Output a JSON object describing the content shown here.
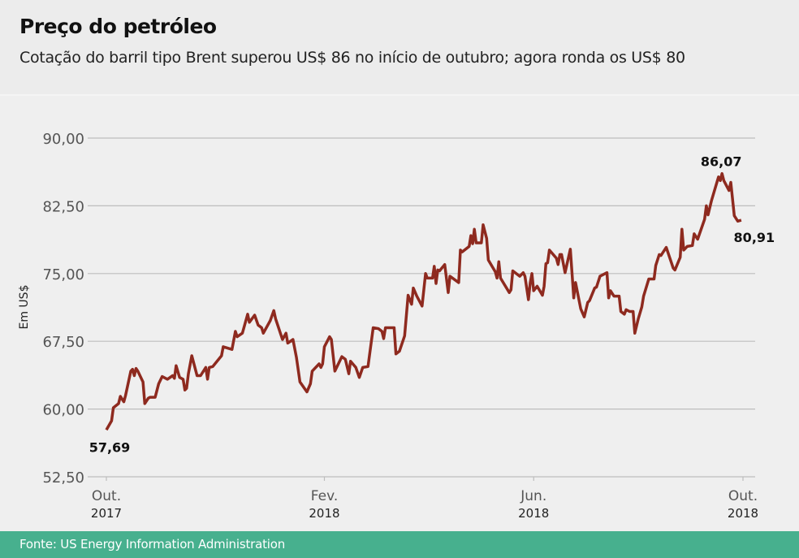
{
  "header": {
    "title": "Preço do petróleo",
    "subtitle": "Cotação do barril tipo Brent superou US$ 86 no início de outubro; agora ronda os US$ 80"
  },
  "footer": {
    "source": "Fonte: US Energy Information Administration"
  },
  "colors": {
    "line": "#8e2a1f",
    "grid": "#bdbdbd",
    "footer": "#47b08e"
  },
  "chart_data": {
    "type": "line",
    "title": "Preço do petróleo",
    "subtitle": "Cotação do barril tipo Brent superou US$ 86 no início de outubro; agora ronda os US$ 80",
    "ylabel": "Em US$",
    "ylim": [
      52.5,
      90
    ],
    "xlim": [
      "2017-10-01",
      "2018-10-01"
    ],
    "grid": true,
    "yticks": [
      {
        "value": 90,
        "label": "90,00"
      },
      {
        "value": 82.5,
        "label": "82,50"
      },
      {
        "value": 75,
        "label": "75,00"
      },
      {
        "value": 67.5,
        "label": "67,50"
      },
      {
        "value": 60,
        "label": "60,00"
      },
      {
        "value": 52.5,
        "label": "52,50"
      }
    ],
    "xticks": [
      {
        "date": "2017-10-01",
        "month": "Out.",
        "year": "2017"
      },
      {
        "date": "2018-02-03",
        "month": "Fev.",
        "year": "2018"
      },
      {
        "date": "2018-06-03",
        "month": "Jun.",
        "year": "2018"
      },
      {
        "date": "2018-10-01",
        "month": "Out.",
        "year": "2018"
      }
    ],
    "annotations": [
      {
        "date": "2017-10-01",
        "value": 57.69,
        "label": "57,69",
        "position": "below"
      },
      {
        "date": "2018-09-19",
        "value": 86.07,
        "label": "86,07",
        "position": "above"
      },
      {
        "date": "2018-09-30",
        "value": 80.91,
        "label": "80,91",
        "position": "below-right"
      }
    ],
    "series": [
      {
        "points": [
          [
            "2017-10-01",
            57.69
          ],
          [
            "2017-10-04",
            58.7
          ],
          [
            "2017-10-05",
            60.14
          ],
          [
            "2017-10-08",
            60.6
          ],
          [
            "2017-10-09",
            61.4
          ],
          [
            "2017-10-11",
            60.8
          ],
          [
            "2017-10-12",
            61.5
          ],
          [
            "2017-10-15",
            64.2
          ],
          [
            "2017-10-16",
            64.4
          ],
          [
            "2017-10-17",
            63.7
          ],
          [
            "2017-10-18",
            64.5
          ],
          [
            "2017-10-19",
            64.2
          ],
          [
            "2017-10-22",
            63.0
          ],
          [
            "2017-10-23",
            60.6
          ],
          [
            "2017-10-25",
            61.2
          ],
          [
            "2017-10-26",
            61.3
          ],
          [
            "2017-10-29",
            61.3
          ],
          [
            "2017-10-31",
            62.8
          ],
          [
            "2017-11-02",
            63.6
          ],
          [
            "2017-11-05",
            63.3
          ],
          [
            "2017-11-08",
            63.7
          ],
          [
            "2017-11-09",
            63.4
          ],
          [
            "2017-11-10",
            64.8
          ],
          [
            "2017-11-12",
            63.5
          ],
          [
            "2017-11-14",
            63.3
          ],
          [
            "2017-11-15",
            62.1
          ],
          [
            "2017-11-16",
            62.3
          ],
          [
            "2017-11-17",
            63.9
          ],
          [
            "2017-11-19",
            65.9
          ],
          [
            "2017-11-22",
            63.7
          ],
          [
            "2017-11-24",
            63.7
          ],
          [
            "2017-11-27",
            64.6
          ],
          [
            "2017-11-28",
            63.3
          ],
          [
            "2017-11-29",
            64.6
          ],
          [
            "2017-12-01",
            64.7
          ],
          [
            "2017-12-06",
            65.9
          ],
          [
            "2017-12-07",
            66.9
          ],
          [
            "2017-12-12",
            66.6
          ],
          [
            "2017-12-14",
            68.6
          ],
          [
            "2017-12-15",
            68.0
          ],
          [
            "2017-12-18",
            68.4
          ],
          [
            "2017-12-21",
            70.5
          ],
          [
            "2017-12-22",
            69.6
          ],
          [
            "2017-12-25",
            70.4
          ],
          [
            "2017-12-27",
            69.3
          ],
          [
            "2017-12-29",
            69.0
          ],
          [
            "2017-12-30",
            68.4
          ],
          [
            "2018-01-03",
            69.8
          ],
          [
            "2018-01-05",
            70.9
          ],
          [
            "2018-01-06",
            70.0
          ],
          [
            "2018-01-10",
            67.7
          ],
          [
            "2018-01-12",
            68.4
          ],
          [
            "2018-01-13",
            67.3
          ],
          [
            "2018-01-16",
            67.7
          ],
          [
            "2018-01-18",
            65.7
          ],
          [
            "2018-01-20",
            63.0
          ],
          [
            "2018-01-24",
            61.9
          ],
          [
            "2018-01-26",
            62.8
          ],
          [
            "2018-01-27",
            64.2
          ],
          [
            "2018-01-31",
            65.0
          ],
          [
            "2018-02-01",
            64.6
          ],
          [
            "2018-02-02",
            65.0
          ],
          [
            "2018-02-03",
            66.9
          ],
          [
            "2018-02-06",
            68.0
          ],
          [
            "2018-02-07",
            67.7
          ],
          [
            "2018-02-09",
            64.2
          ],
          [
            "2018-02-13",
            65.8
          ],
          [
            "2018-02-15",
            65.5
          ],
          [
            "2018-02-17",
            63.9
          ],
          [
            "2018-02-18",
            65.3
          ],
          [
            "2018-02-21",
            64.6
          ],
          [
            "2018-02-23",
            63.5
          ],
          [
            "2018-02-25",
            64.6
          ],
          [
            "2018-02-28",
            64.7
          ],
          [
            "2018-03-03",
            69.0
          ],
          [
            "2018-03-06",
            68.9
          ],
          [
            "2018-03-08",
            68.6
          ],
          [
            "2018-03-09",
            67.8
          ],
          [
            "2018-03-10",
            69.0
          ],
          [
            "2018-03-15",
            69.0
          ],
          [
            "2018-03-16",
            66.1
          ],
          [
            "2018-03-18",
            66.4
          ],
          [
            "2018-03-21",
            68.1
          ],
          [
            "2018-03-23",
            72.6
          ],
          [
            "2018-03-25",
            71.6
          ],
          [
            "2018-03-26",
            73.4
          ],
          [
            "2018-03-28",
            72.5
          ],
          [
            "2018-03-31",
            71.4
          ],
          [
            "2018-04-02",
            75.0
          ],
          [
            "2018-04-03",
            74.5
          ],
          [
            "2018-04-06",
            74.5
          ],
          [
            "2018-04-07",
            75.8
          ],
          [
            "2018-04-08",
            73.9
          ],
          [
            "2018-04-09",
            75.4
          ],
          [
            "2018-04-10",
            75.3
          ],
          [
            "2018-04-13",
            76.0
          ],
          [
            "2018-04-15",
            72.9
          ],
          [
            "2018-04-16",
            74.7
          ],
          [
            "2018-04-21",
            74.0
          ],
          [
            "2018-04-22",
            77.6
          ],
          [
            "2018-04-23",
            77.4
          ],
          [
            "2018-04-27",
            78.0
          ],
          [
            "2018-04-28",
            79.2
          ],
          [
            "2018-04-29",
            78.3
          ],
          [
            "2018-04-30",
            79.9
          ],
          [
            "2018-05-01",
            78.4
          ],
          [
            "2018-05-04",
            78.4
          ],
          [
            "2018-05-05",
            80.4
          ],
          [
            "2018-05-07",
            78.9
          ],
          [
            "2018-05-08",
            76.5
          ],
          [
            "2018-05-12",
            75.2
          ],
          [
            "2018-05-13",
            74.5
          ],
          [
            "2018-05-14",
            76.3
          ],
          [
            "2018-05-15",
            74.5
          ],
          [
            "2018-05-20",
            72.9
          ],
          [
            "2018-05-21",
            73.2
          ],
          [
            "2018-05-22",
            75.3
          ],
          [
            "2018-05-26",
            74.7
          ],
          [
            "2018-05-28",
            75.1
          ],
          [
            "2018-05-29",
            74.7
          ],
          [
            "2018-05-31",
            72.1
          ],
          [
            "2018-06-01",
            74.0
          ],
          [
            "2018-06-02",
            75.0
          ],
          [
            "2018-06-03",
            73.1
          ],
          [
            "2018-06-05",
            73.6
          ],
          [
            "2018-06-08",
            72.6
          ],
          [
            "2018-06-09",
            73.6
          ],
          [
            "2018-06-10",
            76.1
          ],
          [
            "2018-06-11",
            76.2
          ],
          [
            "2018-06-12",
            77.6
          ],
          [
            "2018-06-16",
            76.7
          ],
          [
            "2018-06-17",
            76.0
          ],
          [
            "2018-06-18",
            77.1
          ],
          [
            "2018-06-19",
            77.1
          ],
          [
            "2018-06-21",
            75.1
          ],
          [
            "2018-06-24",
            77.7
          ],
          [
            "2018-06-26",
            72.3
          ],
          [
            "2018-06-27",
            74.0
          ],
          [
            "2018-06-30",
            71.1
          ],
          [
            "2018-07-02",
            70.2
          ],
          [
            "2018-07-04",
            71.8
          ],
          [
            "2018-07-05",
            72.0
          ],
          [
            "2018-07-08",
            73.4
          ],
          [
            "2018-07-09",
            73.5
          ],
          [
            "2018-07-11",
            74.7
          ],
          [
            "2018-07-15",
            75.1
          ],
          [
            "2018-07-16",
            72.3
          ],
          [
            "2018-07-17",
            73.1
          ],
          [
            "2018-07-19",
            72.5
          ],
          [
            "2018-07-22",
            72.5
          ],
          [
            "2018-07-23",
            70.8
          ],
          [
            "2018-07-25",
            70.5
          ],
          [
            "2018-07-26",
            71.0
          ],
          [
            "2018-07-28",
            70.8
          ],
          [
            "2018-07-30",
            70.8
          ],
          [
            "2018-07-31",
            68.4
          ],
          [
            "2018-08-02",
            70.0
          ],
          [
            "2018-08-04",
            71.3
          ],
          [
            "2018-08-05",
            72.5
          ],
          [
            "2018-08-08",
            74.4
          ],
          [
            "2018-08-11",
            74.4
          ],
          [
            "2018-08-12",
            75.9
          ],
          [
            "2018-08-14",
            77.1
          ],
          [
            "2018-08-15",
            77.0
          ],
          [
            "2018-08-18",
            77.9
          ],
          [
            "2018-08-22",
            75.6
          ],
          [
            "2018-08-23",
            75.4
          ],
          [
            "2018-08-26",
            76.8
          ],
          [
            "2018-08-27",
            79.9
          ],
          [
            "2018-08-28",
            77.6
          ],
          [
            "2018-08-30",
            78.0
          ],
          [
            "2018-09-02",
            78.1
          ],
          [
            "2018-09-03",
            79.4
          ],
          [
            "2018-09-05",
            78.8
          ],
          [
            "2018-09-09",
            81.0
          ],
          [
            "2018-09-10",
            82.5
          ],
          [
            "2018-09-11",
            81.5
          ],
          [
            "2018-09-13",
            83.1
          ],
          [
            "2018-09-17",
            85.7
          ],
          [
            "2018-09-18",
            85.3
          ],
          [
            "2018-09-19",
            86.07
          ],
          [
            "2018-09-20",
            85.3
          ],
          [
            "2018-09-23",
            84.2
          ],
          [
            "2018-09-24",
            85.1
          ],
          [
            "2018-09-26",
            81.4
          ],
          [
            "2018-09-28",
            80.8
          ],
          [
            "2018-09-30",
            80.91
          ]
        ]
      }
    ]
  }
}
